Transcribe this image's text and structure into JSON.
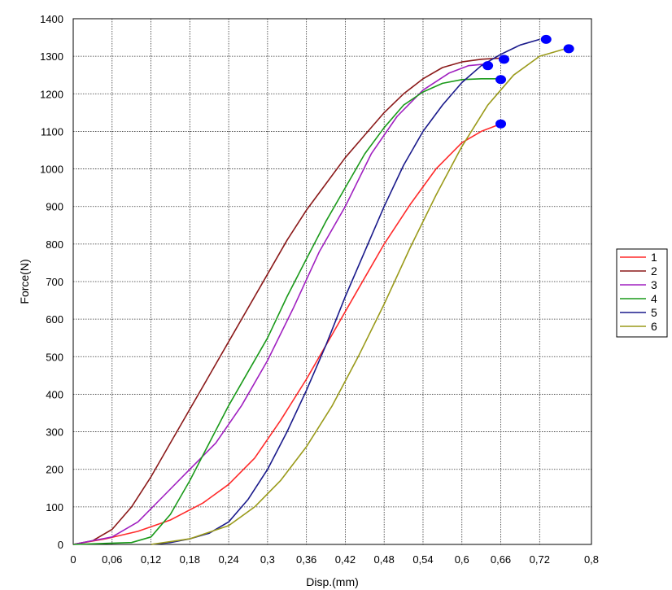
{
  "chart_data": {
    "type": "line",
    "title": "",
    "xlabel": "Disp.(mm)",
    "ylabel": "Force(N)",
    "xlim": [
      0,
      0.8
    ],
    "ylim": [
      0,
      1400
    ],
    "xticks": [
      0,
      0.06,
      0.12,
      0.18,
      0.24,
      0.3,
      0.36,
      0.42,
      0.48,
      0.54,
      0.6,
      0.66,
      0.72,
      0.8
    ],
    "xtick_labels": [
      "0",
      "0,06",
      "0,12",
      "0,18",
      "0,24",
      "0,3",
      "0,36",
      "0,42",
      "0,48",
      "0,54",
      "0,6",
      "0,66",
      "0,72",
      "0,8"
    ],
    "yticks": [
      0,
      100,
      200,
      300,
      400,
      500,
      600,
      700,
      800,
      900,
      1000,
      1100,
      1200,
      1300,
      1400
    ],
    "ytick_labels": [
      "0",
      "100",
      "200",
      "300",
      "400",
      "500",
      "600",
      "700",
      "800",
      "900",
      "1000",
      "1100",
      "1200",
      "1300",
      "1400"
    ],
    "grid": true,
    "legend_position": "right",
    "marker_color": "#0000ff",
    "series": [
      {
        "name": "1",
        "color": "#ff2a2a",
        "x": [
          0,
          0.05,
          0.1,
          0.15,
          0.2,
          0.24,
          0.28,
          0.32,
          0.36,
          0.4,
          0.44,
          0.48,
          0.52,
          0.56,
          0.6,
          0.63,
          0.66
        ],
        "y": [
          0,
          15,
          35,
          65,
          110,
          160,
          230,
          330,
          440,
          560,
          680,
          800,
          905,
          1000,
          1070,
          1100,
          1120
        ],
        "end_marker": [
          0.66,
          1120
        ]
      },
      {
        "name": "2",
        "color": "#8b1a1a",
        "x": [
          0,
          0.03,
          0.06,
          0.09,
          0.12,
          0.15,
          0.18,
          0.21,
          0.24,
          0.27,
          0.3,
          0.33,
          0.36,
          0.39,
          0.42,
          0.45,
          0.48,
          0.51,
          0.54,
          0.57,
          0.6,
          0.63,
          0.66
        ],
        "y": [
          0,
          10,
          40,
          100,
          180,
          270,
          360,
          450,
          540,
          630,
          720,
          810,
          890,
          960,
          1030,
          1090,
          1150,
          1200,
          1240,
          1270,
          1285,
          1292,
          1295
        ],
        "end_marker": [
          0.665,
          1292
        ]
      },
      {
        "name": "3",
        "color": "#a020c0",
        "x": [
          0,
          0.06,
          0.1,
          0.14,
          0.18,
          0.22,
          0.26,
          0.3,
          0.34,
          0.38,
          0.42,
          0.46,
          0.5,
          0.54,
          0.58,
          0.61,
          0.64
        ],
        "y": [
          0,
          20,
          60,
          130,
          200,
          270,
          370,
          490,
          630,
          780,
          900,
          1040,
          1140,
          1210,
          1255,
          1275,
          1280
        ],
        "end_marker": [
          0.64,
          1275
        ]
      },
      {
        "name": "4",
        "color": "#1a9a1a",
        "x": [
          0,
          0.09,
          0.12,
          0.15,
          0.18,
          0.21,
          0.24,
          0.27,
          0.3,
          0.33,
          0.36,
          0.39,
          0.42,
          0.45,
          0.48,
          0.51,
          0.54,
          0.57,
          0.6,
          0.63,
          0.66
        ],
        "y": [
          0,
          5,
          20,
          80,
          170,
          270,
          370,
          460,
          550,
          660,
          760,
          860,
          950,
          1040,
          1110,
          1170,
          1205,
          1228,
          1238,
          1240,
          1240
        ],
        "end_marker": [
          0.66,
          1238
        ]
      },
      {
        "name": "5",
        "color": "#1a1a8b",
        "x": [
          0.12,
          0.15,
          0.18,
          0.21,
          0.24,
          0.27,
          0.3,
          0.33,
          0.36,
          0.39,
          0.42,
          0.45,
          0.48,
          0.51,
          0.54,
          0.57,
          0.6,
          0.63,
          0.66,
          0.69,
          0.72
        ],
        "y": [
          0,
          5,
          15,
          30,
          60,
          120,
          200,
          300,
          410,
          530,
          660,
          780,
          900,
          1010,
          1100,
          1170,
          1230,
          1275,
          1305,
          1330,
          1345
        ],
        "end_marker": [
          0.73,
          1345
        ]
      },
      {
        "name": "6",
        "color": "#9a9a1a",
        "x": [
          0.12,
          0.18,
          0.24,
          0.28,
          0.32,
          0.36,
          0.4,
          0.44,
          0.48,
          0.52,
          0.56,
          0.6,
          0.64,
          0.68,
          0.72,
          0.76
        ],
        "y": [
          0,
          15,
          50,
          100,
          170,
          260,
          370,
          500,
          640,
          790,
          930,
          1060,
          1170,
          1250,
          1300,
          1320
        ],
        "end_marker": [
          0.765,
          1320
        ]
      }
    ]
  }
}
